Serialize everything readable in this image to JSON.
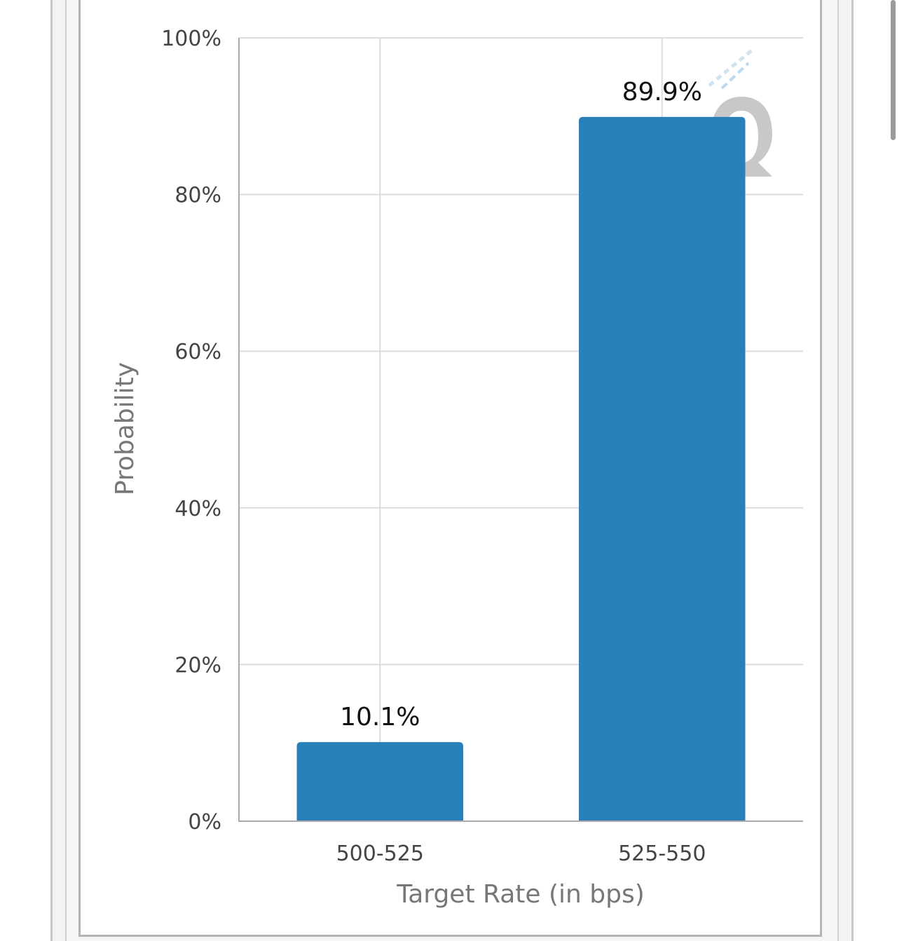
{
  "chart_data": {
    "type": "bar",
    "categories": [
      "500-525",
      "525-550"
    ],
    "values": [
      10.1,
      89.9
    ],
    "data_labels": [
      "10.1%",
      "89.9%"
    ],
    "title": "",
    "xlabel": "Target Rate (in bps)",
    "ylabel": "Probability",
    "ylim": [
      0,
      100
    ],
    "yticks": [
      0,
      20,
      40,
      60,
      80,
      100
    ],
    "ytick_labels": [
      "0%",
      "20%",
      "40%",
      "60%",
      "80%",
      "100%"
    ],
    "grid": true,
    "legend": "none",
    "bar_color": "#2980b9",
    "grid_color": "#dddddd",
    "axis_color": "#aaaaaa",
    "watermark_icon": "q-logo-watermark-icon"
  }
}
